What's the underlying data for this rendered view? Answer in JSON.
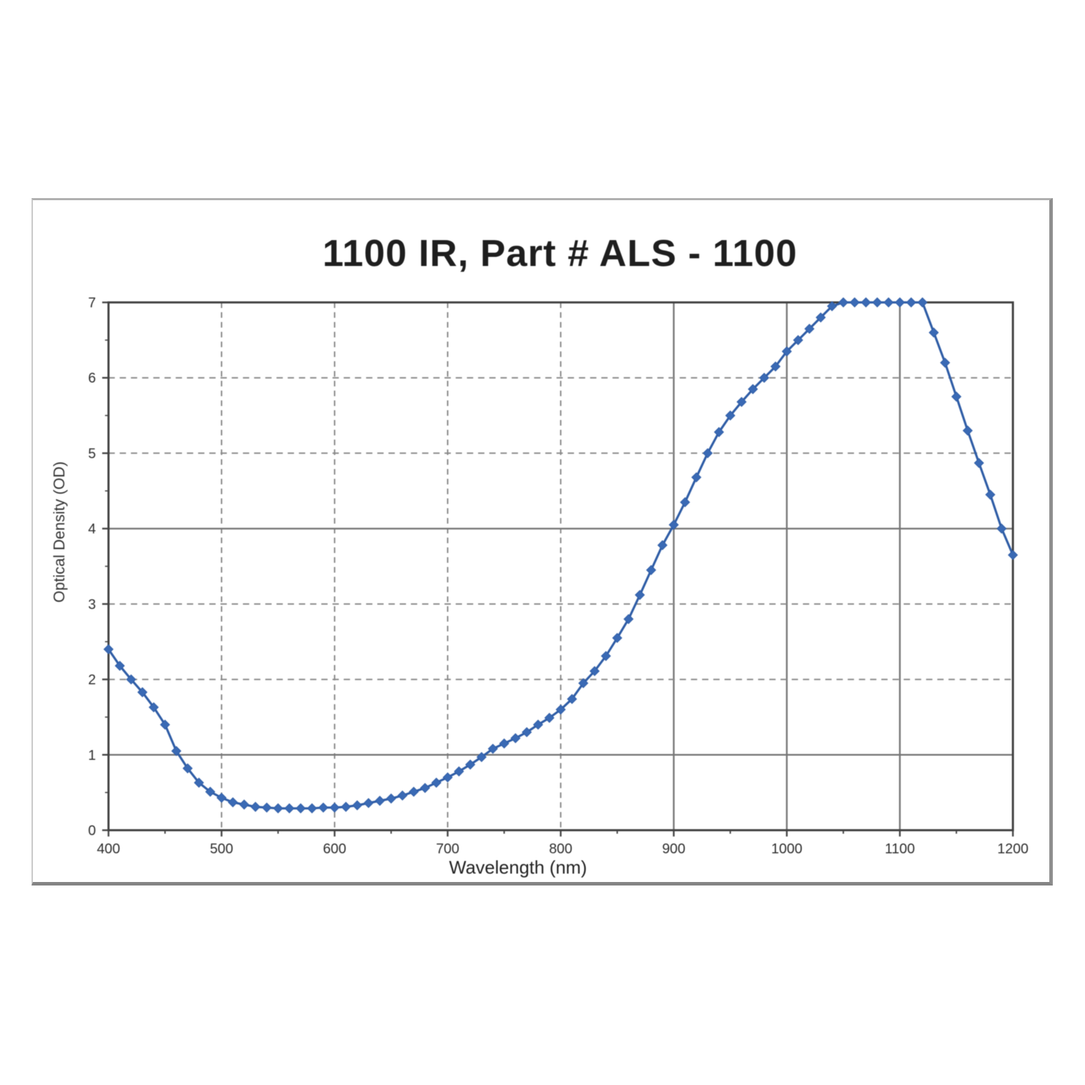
{
  "page": {
    "background": "#ffffff"
  },
  "panel": {
    "border_color": "#9a9a9a",
    "background": "#ffffff"
  },
  "chart_data": {
    "type": "line",
    "title": "1100 IR, Part # ALS - 1100",
    "xlabel": "Wavelength (nm)",
    "ylabel": "Optical Density (OD)",
    "xlim": [
      400,
      1200
    ],
    "ylim": [
      0,
      7
    ],
    "x_ticks": [
      400,
      500,
      600,
      700,
      800,
      900,
      1000,
      1100,
      1200
    ],
    "x_minor_ticks": [
      450,
      550,
      650,
      750,
      850,
      950,
      1050,
      1150
    ],
    "y_ticks": [
      0,
      1,
      2,
      3,
      4,
      5,
      6,
      7
    ],
    "y_minor_ticks": [
      0.5,
      1.5,
      2.5,
      3.5,
      4.5,
      5.5,
      6.5
    ],
    "grid": {
      "vertical_dashed": [
        500,
        600,
        700,
        800
      ],
      "vertical_solid": [
        900,
        1000,
        1100
      ],
      "horizontal_dashed": [
        2,
        3,
        5,
        6
      ],
      "horizontal_solid": [
        1,
        4
      ],
      "dashed_color": "#8a8a8a",
      "solid_color": "#767676"
    },
    "axis_frame_color": "#424242",
    "legend": "none",
    "series": [
      {
        "name": "Optical Density",
        "color": "#3a6ab5",
        "line_color": "#2f5da6",
        "marker": "diamond",
        "marker_size": 13,
        "x": [
          400,
          410,
          420,
          430,
          440,
          450,
          460,
          470,
          480,
          490,
          500,
          510,
          520,
          530,
          540,
          550,
          560,
          570,
          580,
          590,
          600,
          610,
          620,
          630,
          640,
          650,
          660,
          670,
          680,
          690,
          700,
          710,
          720,
          730,
          740,
          750,
          760,
          770,
          780,
          790,
          800,
          810,
          820,
          830,
          840,
          850,
          860,
          870,
          880,
          890,
          900,
          910,
          920,
          930,
          940,
          950,
          960,
          970,
          980,
          990,
          1000,
          1010,
          1020,
          1030,
          1040,
          1050,
          1060,
          1070,
          1080,
          1090,
          1100,
          1110,
          1120,
          1130,
          1140,
          1150,
          1160,
          1170,
          1180,
          1190,
          1200
        ],
        "y": [
          2.4,
          2.18,
          2.0,
          1.83,
          1.63,
          1.4,
          1.05,
          0.82,
          0.63,
          0.51,
          0.43,
          0.37,
          0.34,
          0.31,
          0.3,
          0.29,
          0.29,
          0.29,
          0.29,
          0.3,
          0.3,
          0.31,
          0.33,
          0.36,
          0.39,
          0.42,
          0.46,
          0.51,
          0.56,
          0.63,
          0.7,
          0.78,
          0.87,
          0.97,
          1.08,
          1.15,
          1.22,
          1.3,
          1.4,
          1.49,
          1.6,
          1.74,
          1.95,
          2.11,
          2.31,
          2.55,
          2.8,
          3.12,
          3.45,
          3.78,
          4.05,
          4.35,
          4.68,
          5.0,
          5.28,
          5.5,
          5.68,
          5.85,
          6.0,
          6.15,
          6.35,
          6.5,
          6.65,
          6.8,
          6.95,
          7.0,
          7.0,
          7.0,
          7.0,
          7.0,
          7.0,
          7.0,
          7.0,
          6.6,
          6.2,
          5.75,
          5.3,
          4.87,
          4.45,
          4.0,
          3.65
        ]
      }
    ]
  }
}
